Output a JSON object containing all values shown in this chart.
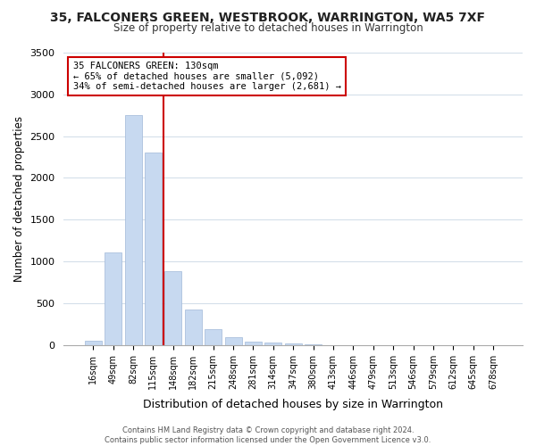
{
  "title": "35, FALCONERS GREEN, WESTBROOK, WARRINGTON, WA5 7XF",
  "subtitle": "Size of property relative to detached houses in Warrington",
  "xlabel": "Distribution of detached houses by size in Warrington",
  "ylabel": "Number of detached properties",
  "bar_values": [
    50,
    1110,
    2750,
    2300,
    880,
    430,
    185,
    95,
    40,
    30,
    20,
    10,
    0,
    0,
    0,
    0,
    0,
    0,
    0,
    0,
    0
  ],
  "bar_labels": [
    "16sqm",
    "49sqm",
    "82sqm",
    "115sqm",
    "148sqm",
    "182sqm",
    "215sqm",
    "248sqm",
    "281sqm",
    "314sqm",
    "347sqm",
    "380sqm",
    "413sqm",
    "446sqm",
    "479sqm",
    "513sqm",
    "546sqm",
    "579sqm",
    "612sqm",
    "645sqm",
    "678sqm"
  ],
  "bar_color": "#c7d9f0",
  "bar_edge_color": "#a0b8d8",
  "vline_color": "#cc0000",
  "vline_pos": 3.5,
  "annotation_text": "35 FALCONERS GREEN: 130sqm\n← 65% of detached houses are smaller (5,092)\n34% of semi-detached houses are larger (2,681) →",
  "annotation_box_color": "#ffffff",
  "annotation_box_edge": "#cc0000",
  "ylim": [
    0,
    3500
  ],
  "yticks": [
    0,
    500,
    1000,
    1500,
    2000,
    2500,
    3000,
    3500
  ],
  "footer_line1": "Contains HM Land Registry data © Crown copyright and database right 2024.",
  "footer_line2": "Contains public sector information licensed under the Open Government Licence v3.0.",
  "bg_color": "#ffffff",
  "grid_color": "#d0dce8"
}
